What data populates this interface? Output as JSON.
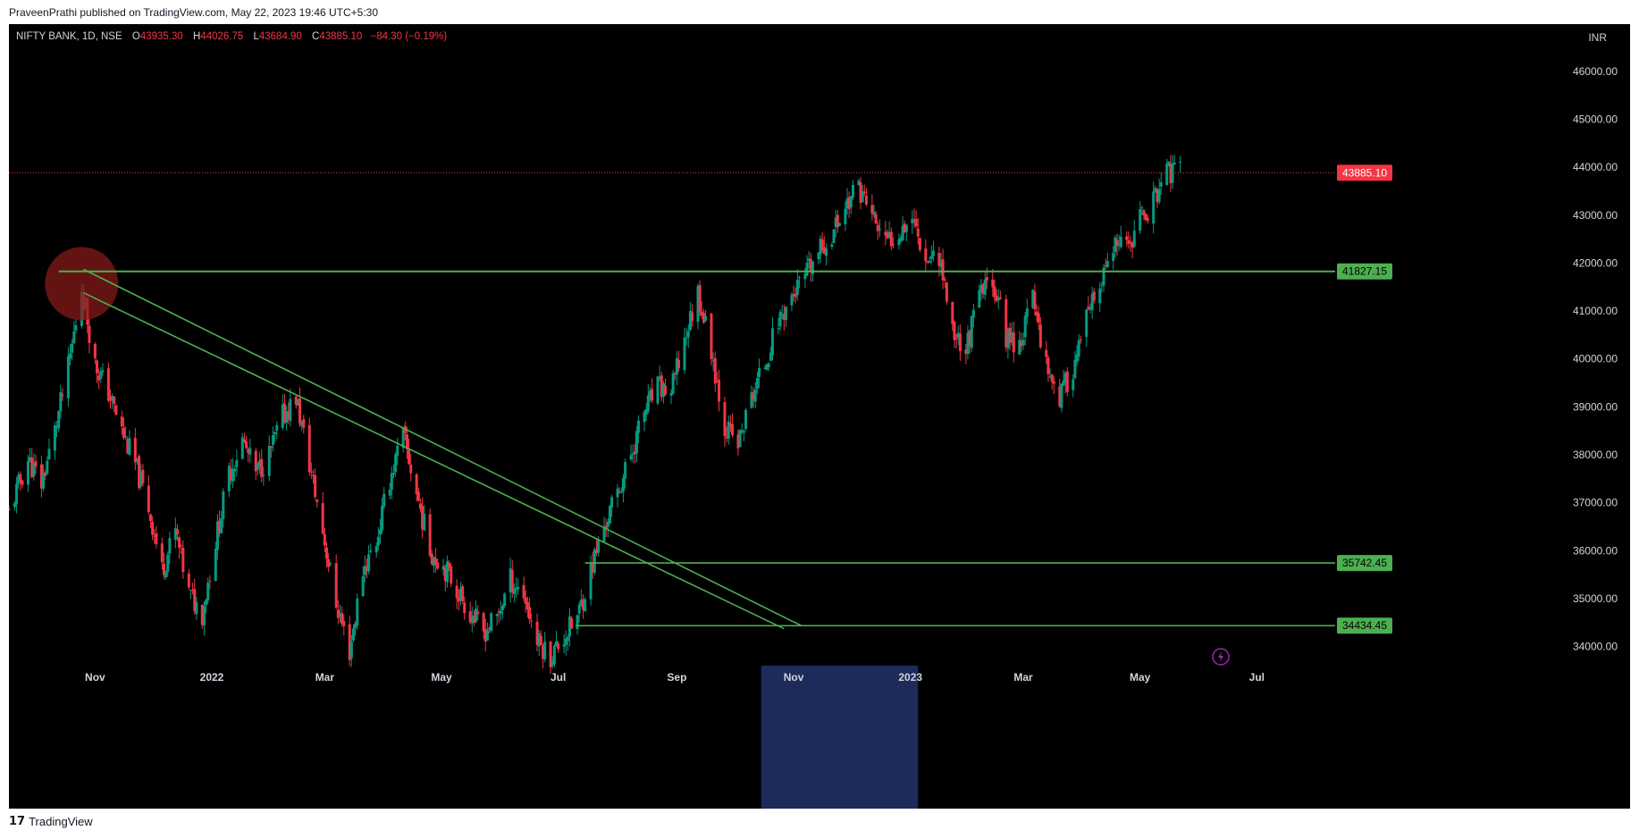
{
  "header": {
    "publisher_line": "PraveenPrathi published on TradingView.com, May 22, 2023 19:46 UTC+5:30"
  },
  "symbol": {
    "name": "NIFTY BANK, 1D, NSE",
    "open_label": "O",
    "open": "43935.30",
    "high_label": "H",
    "high": "44026.75",
    "low_label": "L",
    "low": "43684.90",
    "close_label": "C",
    "close": "43885.10",
    "change": "−84.30 (−0.19%)"
  },
  "currency": "INR",
  "footer": {
    "brand": "TradingView",
    "logo_glyph": "17"
  },
  "colors": {
    "background": "#000000",
    "up": "#089981",
    "down": "#f23645",
    "levels": "#4caf50",
    "price_line": "#f23645",
    "highlight_circle": "#8b1a1a",
    "time_highlight": "#1e2a5a"
  },
  "chart_data": {
    "type": "candlestick",
    "symbol": "NIFTY BANK",
    "interval": "1D",
    "ylim": [
      33600,
      46800
    ],
    "y_ticks": [
      34000,
      35000,
      36000,
      37000,
      38000,
      39000,
      40000,
      41000,
      42000,
      43000,
      44000,
      45000,
      46000
    ],
    "y_tick_labels": [
      "34000.00",
      "35000.00",
      "36000.00",
      "37000.00",
      "38000.00",
      "39000.00",
      "40000.00",
      "41000.00",
      "42000.00",
      "43000.00",
      "44000.00",
      "45000.00",
      "46000.00"
    ],
    "x_range": [
      "2021-09-17",
      "2023-08-10"
    ],
    "x_ticks": [
      {
        "date": "2021-11-01",
        "label": "Nov"
      },
      {
        "date": "2022-01-01",
        "label": "2022"
      },
      {
        "date": "2022-03-01",
        "label": "Mar"
      },
      {
        "date": "2022-05-01",
        "label": "May"
      },
      {
        "date": "2022-07-01",
        "label": "Jul"
      },
      {
        "date": "2022-09-01",
        "label": "Sep"
      },
      {
        "date": "2022-11-01",
        "label": "Nov"
      },
      {
        "date": "2023-01-01",
        "label": "2023"
      },
      {
        "date": "2023-03-01",
        "label": "Mar"
      },
      {
        "date": "2023-05-01",
        "label": "May"
      },
      {
        "date": "2023-07-01",
        "label": "Jul"
      }
    ],
    "time_highlight": [
      "2022-10-15",
      "2023-01-05"
    ],
    "last_price": 43885.1,
    "last_price_label": "43885.10",
    "horizontal_levels": [
      {
        "price": 41827.15,
        "label": "41827.15",
        "from": "2021-10-13",
        "to": "2023-08-10"
      },
      {
        "price": 35742.45,
        "label": "35742.45",
        "from": "2022-07-15",
        "to": "2023-08-10"
      },
      {
        "price": 34434.45,
        "label": "34434.45",
        "from": "2022-07-10",
        "to": "2023-08-10"
      }
    ],
    "trendlines": [
      {
        "from": {
          "date": "2021-10-26",
          "price": 41870
        },
        "to": {
          "date": "2022-11-05",
          "price": 34434
        }
      },
      {
        "from": {
          "date": "2021-10-26",
          "price": 41380
        },
        "to": {
          "date": "2022-10-27",
          "price": 34370
        }
      }
    ],
    "highlight_circle": {
      "date": "2021-10-25",
      "price": 41570
    },
    "price_path": [
      [
        "2021-09-17",
        36800
      ],
      [
        "2021-09-27",
        37900
      ],
      [
        "2021-10-04",
        37400
      ],
      [
        "2021-10-11",
        38500
      ],
      [
        "2021-10-18",
        39800
      ],
      [
        "2021-10-25",
        41500
      ],
      [
        "2021-11-01",
        39900
      ],
      [
        "2021-11-08",
        39300
      ],
      [
        "2021-11-15",
        38500
      ],
      [
        "2021-11-22",
        37800
      ],
      [
        "2021-11-29",
        36900
      ],
      [
        "2021-12-06",
        35600
      ],
      [
        "2021-12-13",
        36400
      ],
      [
        "2021-12-20",
        35100
      ],
      [
        "2021-12-27",
        34700
      ],
      [
        "2022-01-03",
        36200
      ],
      [
        "2022-01-10",
        37600
      ],
      [
        "2022-01-17",
        38300
      ],
      [
        "2022-01-24",
        37600
      ],
      [
        "2022-01-31",
        38000
      ],
      [
        "2022-02-07",
        38800
      ],
      [
        "2022-02-14",
        39200
      ],
      [
        "2022-02-21",
        37800
      ],
      [
        "2022-02-28",
        36400
      ],
      [
        "2022-03-07",
        34900
      ],
      [
        "2022-03-14",
        33900
      ],
      [
        "2022-03-21",
        35600
      ],
      [
        "2022-03-28",
        36200
      ],
      [
        "2022-04-04",
        37500
      ],
      [
        "2022-04-11",
        38400
      ],
      [
        "2022-04-18",
        37200
      ],
      [
        "2022-04-25",
        36000
      ],
      [
        "2022-05-02",
        35700
      ],
      [
        "2022-05-09",
        35200
      ],
      [
        "2022-05-16",
        34700
      ],
      [
        "2022-05-23",
        34300
      ],
      [
        "2022-05-30",
        34600
      ],
      [
        "2022-06-06",
        35400
      ],
      [
        "2022-06-13",
        35100
      ],
      [
        "2022-06-20",
        34100
      ],
      [
        "2022-06-27",
        33800
      ],
      [
        "2022-07-04",
        34200
      ],
      [
        "2022-07-11",
        34600
      ],
      [
        "2022-07-18",
        35600
      ],
      [
        "2022-07-25",
        36500
      ],
      [
        "2022-08-01",
        37200
      ],
      [
        "2022-08-08",
        38000
      ],
      [
        "2022-08-15",
        38900
      ],
      [
        "2022-08-22",
        39400
      ],
      [
        "2022-08-29",
        39300
      ],
      [
        "2022-09-05",
        40400
      ],
      [
        "2022-09-12",
        41400
      ],
      [
        "2022-09-19",
        40200
      ],
      [
        "2022-09-26",
        38600
      ],
      [
        "2022-10-03",
        38200
      ],
      [
        "2022-10-10",
        39200
      ],
      [
        "2022-10-17",
        39900
      ],
      [
        "2022-10-24",
        40800
      ],
      [
        "2022-10-31",
        41300
      ],
      [
        "2022-11-07",
        41700
      ],
      [
        "2022-11-14",
        42200
      ],
      [
        "2022-11-21",
        42600
      ],
      [
        "2022-11-28",
        43200
      ],
      [
        "2022-12-05",
        43600
      ],
      [
        "2022-12-12",
        43000
      ],
      [
        "2022-12-19",
        42400
      ],
      [
        "2022-12-26",
        42700
      ],
      [
        "2023-01-02",
        43000
      ],
      [
        "2023-01-09",
        42100
      ],
      [
        "2023-01-16",
        42200
      ],
      [
        "2023-01-23",
        40600
      ],
      [
        "2023-01-30",
        40200
      ],
      [
        "2023-02-06",
        41300
      ],
      [
        "2023-02-13",
        41700
      ],
      [
        "2023-02-20",
        40500
      ],
      [
        "2023-02-27",
        40300
      ],
      [
        "2023-03-06",
        41300
      ],
      [
        "2023-03-13",
        39900
      ],
      [
        "2023-03-20",
        39200
      ],
      [
        "2023-03-27",
        39800
      ],
      [
        "2023-04-03",
        40800
      ],
      [
        "2023-04-10",
        41500
      ],
      [
        "2023-04-17",
        42300
      ],
      [
        "2023-04-24",
        42300
      ],
      [
        "2023-05-01",
        42900
      ],
      [
        "2023-05-08",
        43300
      ],
      [
        "2023-05-15",
        43900
      ],
      [
        "2023-05-22",
        43885
      ]
    ]
  }
}
